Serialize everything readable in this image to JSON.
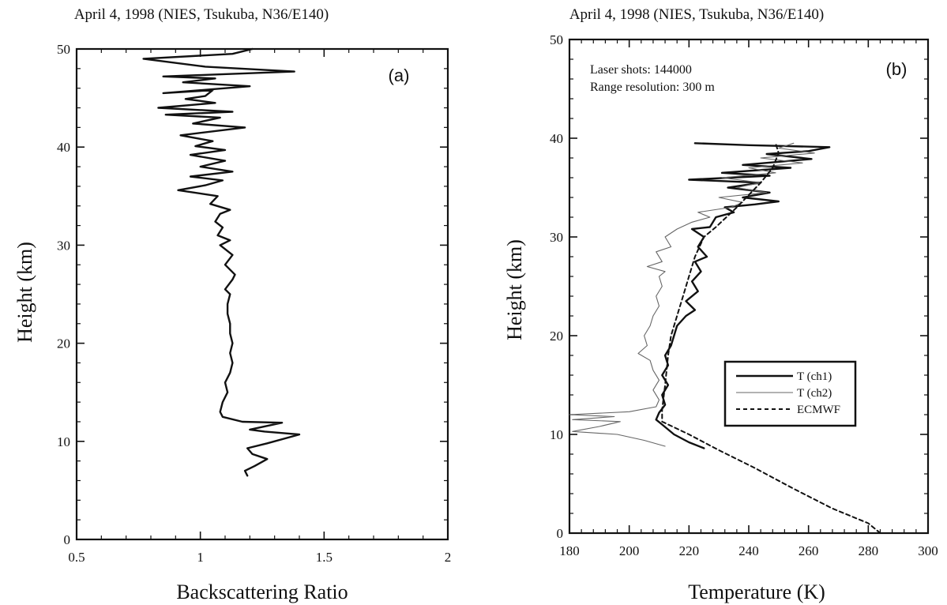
{
  "chart_data": [
    {
      "type": "line",
      "title": "April 4, 1998 (NIES, Tsukuba, N36/E140)",
      "panel_label": "(a)",
      "xlabel": "Backscattering Ratio",
      "ylabel": "Height (km)",
      "xlim": [
        0.5,
        2
      ],
      "ylim": [
        0,
        50
      ],
      "xticks": [
        "0.5",
        "1",
        "1.5",
        "2"
      ],
      "yticks": [
        "0",
        "10",
        "20",
        "30",
        "40",
        "50"
      ],
      "series": [
        {
          "color": "#111111",
          "style": "solid",
          "points": [
            [
              1.19,
              6.5
            ],
            [
              1.18,
              7.0
            ],
            [
              1.22,
              7.5
            ],
            [
              1.27,
              8.2
            ],
            [
              1.21,
              8.7
            ],
            [
              1.19,
              9.3
            ],
            [
              1.27,
              9.8
            ],
            [
              1.4,
              10.7
            ],
            [
              1.26,
              11.0
            ],
            [
              1.2,
              11.2
            ],
            [
              1.33,
              11.9
            ],
            [
              1.17,
              12.0
            ],
            [
              1.09,
              12.5
            ],
            [
              1.08,
              13.0
            ],
            [
              1.09,
              14.0
            ],
            [
              1.11,
              15.0
            ],
            [
              1.1,
              16.0
            ],
            [
              1.12,
              17.0
            ],
            [
              1.13,
              18.0
            ],
            [
              1.12,
              19.0
            ],
            [
              1.13,
              20.0
            ],
            [
              1.12,
              21.0
            ],
            [
              1.12,
              22.0
            ],
            [
              1.11,
              23.0
            ],
            [
              1.11,
              24.0
            ],
            [
              1.12,
              25.0
            ],
            [
              1.1,
              25.5
            ],
            [
              1.13,
              26.5
            ],
            [
              1.14,
              27.0
            ],
            [
              1.1,
              28.0
            ],
            [
              1.13,
              29.0
            ],
            [
              1.08,
              30.0
            ],
            [
              1.12,
              30.5
            ],
            [
              1.07,
              31.0
            ],
            [
              1.09,
              31.8
            ],
            [
              1.06,
              32.4
            ],
            [
              1.08,
              33.2
            ],
            [
              1.12,
              33.6
            ],
            [
              1.04,
              34.2
            ],
            [
              1.07,
              35.0
            ],
            [
              0.91,
              35.6
            ],
            [
              1.02,
              36.1
            ],
            [
              1.09,
              36.6
            ],
            [
              0.96,
              37.0
            ],
            [
              1.13,
              37.5
            ],
            [
              1.0,
              38.0
            ],
            [
              1.1,
              38.6
            ],
            [
              0.96,
              39.2
            ],
            [
              1.1,
              39.7
            ],
            [
              0.98,
              40.1
            ],
            [
              1.05,
              40.6
            ],
            [
              0.92,
              41.2
            ],
            [
              1.18,
              42.0
            ],
            [
              0.97,
              42.4
            ],
            [
              1.08,
              43.0
            ],
            [
              0.86,
              43.3
            ],
            [
              1.13,
              43.6
            ],
            [
              0.83,
              44.0
            ],
            [
              1.06,
              44.5
            ],
            [
              0.94,
              44.9
            ],
            [
              1.02,
              45.2
            ],
            [
              1.05,
              45.8
            ],
            [
              0.85,
              45.5
            ],
            [
              1.2,
              46.2
            ],
            [
              0.93,
              46.6
            ],
            [
              1.06,
              47.0
            ],
            [
              0.85,
              47.2
            ],
            [
              1.38,
              47.7
            ],
            [
              1.02,
              48.2
            ],
            [
              0.77,
              49.0
            ],
            [
              1.13,
              49.5
            ],
            [
              1.21,
              50.0
            ]
          ]
        }
      ]
    },
    {
      "type": "line",
      "title": "April 4, 1998 (NIES, Tsukuba, N36/E140)",
      "panel_label": "(b)",
      "xlabel": "Temperature (K)",
      "ylabel": "Height (km)",
      "xlim": [
        180,
        300
      ],
      "ylim": [
        0,
        50
      ],
      "xticks": [
        "180",
        "200",
        "220",
        "240",
        "260",
        "280",
        "300"
      ],
      "yticks": [
        "0",
        "10",
        "20",
        "30",
        "40",
        "50"
      ],
      "annotations": [
        "Laser shots: 144000",
        "Range resolution: 300 m"
      ],
      "legend": {
        "position": "center-right"
      },
      "series": [
        {
          "name": "T (ch1)",
          "color": "#111111",
          "style": "solid",
          "points": [
            [
              225,
              8.6
            ],
            [
              220,
              9.2
            ],
            [
              215,
              10.0
            ],
            [
              211,
              11.0
            ],
            [
              209,
              11.5
            ],
            [
              210,
              12.2
            ],
            [
              212,
              13.0
            ],
            [
              211,
              14.0
            ],
            [
              213,
              15.0
            ],
            [
              211,
              16.0
            ],
            [
              213,
              17.0
            ],
            [
              212,
              18.0
            ],
            [
              214,
              19.0
            ],
            [
              215,
              20.0
            ],
            [
              216,
              21.0
            ],
            [
              219,
              22.0
            ],
            [
              222,
              22.6
            ],
            [
              219,
              23.5
            ],
            [
              223,
              24.5
            ],
            [
              221,
              25.5
            ],
            [
              224,
              26.5
            ],
            [
              222,
              27.5
            ],
            [
              226,
              28.0
            ],
            [
              223,
              29.0
            ],
            [
              225,
              30.0
            ],
            [
              221,
              30.8
            ],
            [
              227,
              31.0
            ],
            [
              229,
              32.0
            ],
            [
              235,
              32.5
            ],
            [
              232,
              33.0
            ],
            [
              242,
              33.3
            ],
            [
              250,
              33.6
            ],
            [
              238,
              34.0
            ],
            [
              247,
              34.5
            ],
            [
              233,
              35.0
            ],
            [
              244,
              35.5
            ],
            [
              220,
              35.8
            ],
            [
              247,
              36.2
            ],
            [
              231,
              36.5
            ],
            [
              254,
              37.0
            ],
            [
              238,
              37.3
            ],
            [
              261,
              37.9
            ],
            [
              246,
              38.4
            ],
            [
              260,
              38.7
            ],
            [
              267,
              39.1
            ],
            [
              240,
              39.3
            ],
            [
              222,
              39.5
            ]
          ]
        },
        {
          "name": "T (ch2)",
          "color": "#777777",
          "style": "thin",
          "points": [
            [
              212,
              8.8
            ],
            [
              205,
              9.4
            ],
            [
              196,
              10.0
            ],
            [
              181,
              10.3
            ],
            [
              190,
              10.8
            ],
            [
              197,
              11.3
            ],
            [
              181,
              11.5
            ],
            [
              195,
              11.8
            ],
            [
              180,
              12.0
            ],
            [
              200,
              12.3
            ],
            [
              209,
              12.8
            ],
            [
              210,
              13.5
            ],
            [
              208,
              14.5
            ],
            [
              210,
              15.5
            ],
            [
              208,
              16.5
            ],
            [
              207,
              17.5
            ],
            [
              203,
              18.2
            ],
            [
              206,
              19.0
            ],
            [
              205,
              20.0
            ],
            [
              207,
              21.0
            ],
            [
              208,
              22.0
            ],
            [
              210,
              23.0
            ],
            [
              209,
              24.0
            ],
            [
              211,
              25.0
            ],
            [
              210,
              26.0
            ],
            [
              212,
              26.5
            ],
            [
              206,
              27.0
            ],
            [
              211,
              27.5
            ],
            [
              209,
              28.5
            ],
            [
              214,
              29.0
            ],
            [
              212,
              30.0
            ],
            [
              216,
              30.8
            ],
            [
              221,
              31.5
            ],
            [
              227,
              32.0
            ],
            [
              223,
              32.5
            ],
            [
              234,
              33.0
            ],
            [
              238,
              33.5
            ],
            [
              230,
              34.0
            ],
            [
              246,
              34.5
            ],
            [
              236,
              35.0
            ],
            [
              244,
              35.5
            ],
            [
              231,
              36.0
            ],
            [
              249,
              36.5
            ],
            [
              240,
              37.0
            ],
            [
              258,
              37.5
            ],
            [
              244,
              38.0
            ],
            [
              262,
              38.5
            ],
            [
              250,
              39.0
            ],
            [
              255,
              39.5
            ]
          ]
        },
        {
          "name": "ECMWF",
          "color": "#111111",
          "style": "dashed",
          "points": [
            [
              284,
              0.0
            ],
            [
              280,
              1.0
            ],
            [
              268,
              2.5
            ],
            [
              255,
              4.5
            ],
            [
              242,
              6.6
            ],
            [
              230,
              8.4
            ],
            [
              220,
              10.0
            ],
            [
              211,
              11.3
            ],
            [
              211,
              12.5
            ],
            [
              212,
              15.0
            ],
            [
              213,
              18.0
            ],
            [
              214,
              20.0
            ],
            [
              216,
              22.0
            ],
            [
              218,
              24.0
            ],
            [
              220,
              26.0
            ],
            [
              222,
              28.0
            ],
            [
              225,
              30.0
            ],
            [
              229,
              31.0
            ],
            [
              236,
              33.0
            ],
            [
              244,
              35.5
            ],
            [
              248,
              37.0
            ],
            [
              250,
              38.5
            ],
            [
              249,
              39.5
            ]
          ]
        }
      ]
    }
  ]
}
